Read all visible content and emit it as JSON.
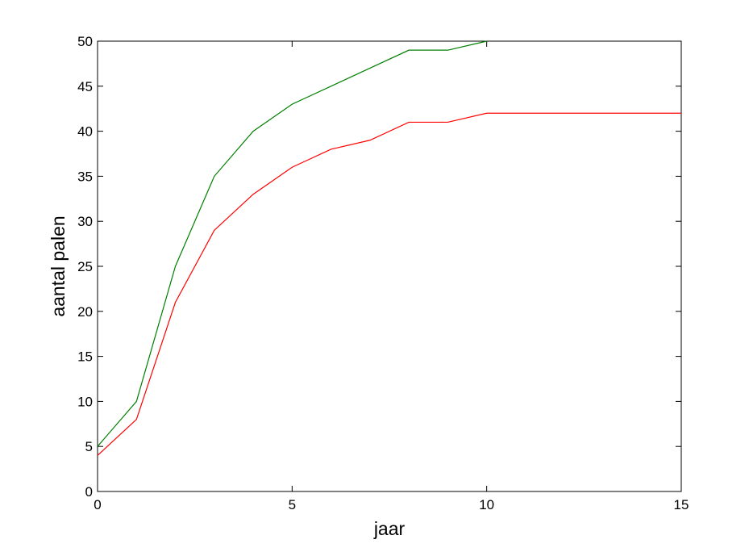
{
  "chart_data": {
    "type": "line",
    "xlabel": "jaar",
    "ylabel": "aantal palen",
    "x": [
      0,
      1,
      2,
      3,
      4,
      5,
      6,
      7,
      8,
      9,
      10,
      11,
      12,
      13,
      14,
      15
    ],
    "series": [
      {
        "color": "#007f00",
        "values": [
          5,
          10,
          25,
          35,
          40,
          43,
          45,
          47,
          49,
          49,
          50,
          null,
          null,
          null,
          null,
          null
        ]
      },
      {
        "color": "#ff0000",
        "values": [
          4,
          8,
          21,
          29,
          33,
          36,
          38,
          39,
          41,
          41,
          42,
          42,
          42,
          42,
          42,
          42
        ]
      }
    ],
    "xlim": [
      0,
      15
    ],
    "xticks": [
      0,
      5,
      10,
      15
    ],
    "ylim": [
      0,
      50
    ],
    "yticks": [
      0,
      5,
      10,
      15,
      20,
      25,
      30,
      35,
      40,
      45,
      50
    ],
    "grid": false
  }
}
